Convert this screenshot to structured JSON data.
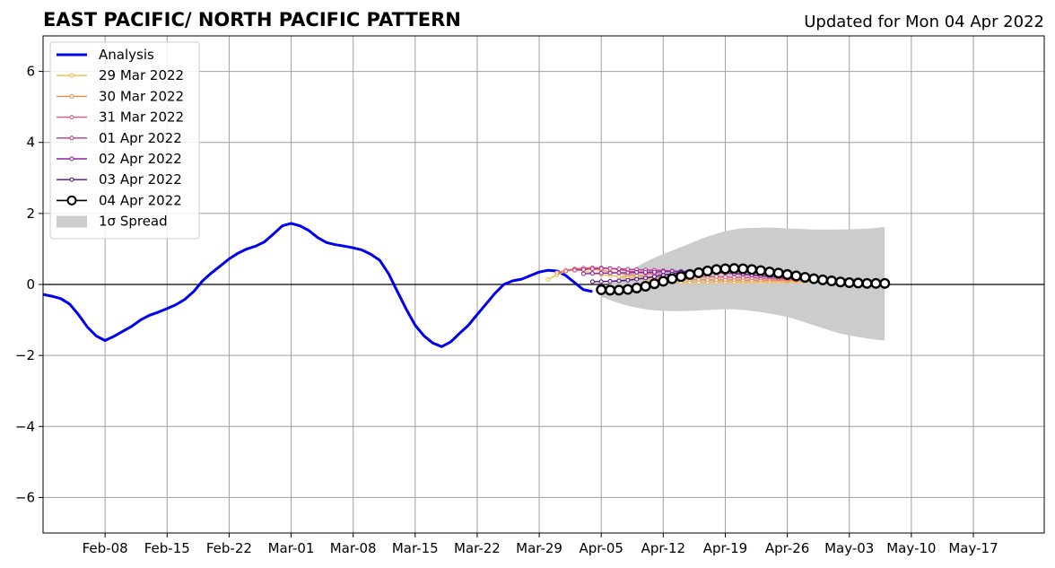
{
  "title": "EAST PACIFIC/ NORTH PACIFIC PATTERN",
  "updated": "Updated for Mon 04 Apr 2022",
  "chart_data": {
    "type": "line",
    "title": "EAST PACIFIC/ NORTH PACIFIC PATTERN",
    "subtitle": "Updated for Mon 04 Apr 2022",
    "xlabel": "",
    "ylabel": "",
    "x_start": "2022-02-01",
    "xlim": [
      "2022-02-01",
      "2022-05-25"
    ],
    "ylim": [
      -7,
      7
    ],
    "x_ticks": [
      {
        "date": "2022-02-08",
        "label": "Feb-08"
      },
      {
        "date": "2022-02-15",
        "label": "Feb-15"
      },
      {
        "date": "2022-02-22",
        "label": "Feb-22"
      },
      {
        "date": "2022-03-01",
        "label": "Mar-01"
      },
      {
        "date": "2022-03-08",
        "label": "Mar-08"
      },
      {
        "date": "2022-03-15",
        "label": "Mar-15"
      },
      {
        "date": "2022-03-22",
        "label": "Mar-22"
      },
      {
        "date": "2022-03-29",
        "label": "Mar-29"
      },
      {
        "date": "2022-04-05",
        "label": "Apr-05"
      },
      {
        "date": "2022-04-12",
        "label": "Apr-12"
      },
      {
        "date": "2022-04-19",
        "label": "Apr-19"
      },
      {
        "date": "2022-04-26",
        "label": "Apr-26"
      },
      {
        "date": "2022-05-03",
        "label": "May-03"
      },
      {
        "date": "2022-05-10",
        "label": "May-10"
      },
      {
        "date": "2022-05-17",
        "label": "May-17"
      }
    ],
    "y_ticks": [
      {
        "value": 6,
        "label": "6"
      },
      {
        "value": 4,
        "label": "4"
      },
      {
        "value": 2,
        "label": "2"
      },
      {
        "value": 0,
        "label": "0"
      },
      {
        "value": -2,
        "label": "−2"
      },
      {
        "value": -4,
        "label": "−4"
      },
      {
        "value": -6,
        "label": "−6"
      }
    ],
    "grid": true,
    "legend_position": "top-left",
    "series": [
      {
        "name": "Analysis",
        "color": "#0000ee",
        "style": "analysis",
        "x": [
          "2022-02-01",
          "2022-02-02",
          "2022-02-03",
          "2022-02-04",
          "2022-02-05",
          "2022-02-06",
          "2022-02-07",
          "2022-02-08",
          "2022-02-09",
          "2022-02-10",
          "2022-02-11",
          "2022-02-12",
          "2022-02-13",
          "2022-02-14",
          "2022-02-15",
          "2022-02-16",
          "2022-02-17",
          "2022-02-18",
          "2022-02-19",
          "2022-02-20",
          "2022-02-21",
          "2022-02-22",
          "2022-02-23",
          "2022-02-24",
          "2022-02-25",
          "2022-02-26",
          "2022-02-27",
          "2022-02-28",
          "2022-03-01",
          "2022-03-02",
          "2022-03-03",
          "2022-03-04",
          "2022-03-05",
          "2022-03-06",
          "2022-03-07",
          "2022-03-08",
          "2022-03-09",
          "2022-03-10",
          "2022-03-11",
          "2022-03-12",
          "2022-03-13",
          "2022-03-14",
          "2022-03-15",
          "2022-03-16",
          "2022-03-17",
          "2022-03-18",
          "2022-03-19",
          "2022-03-20",
          "2022-03-21",
          "2022-03-22",
          "2022-03-23",
          "2022-03-24",
          "2022-03-25",
          "2022-03-26",
          "2022-03-27",
          "2022-03-28",
          "2022-03-29",
          "2022-03-30",
          "2022-03-31",
          "2022-04-01",
          "2022-04-02",
          "2022-04-03",
          "2022-04-04"
        ],
        "values": [
          -0.28,
          -0.33,
          -0.4,
          -0.55,
          -0.85,
          -1.2,
          -1.45,
          -1.58,
          -1.46,
          -1.32,
          -1.18,
          -1.0,
          -0.87,
          -0.78,
          -0.68,
          -0.57,
          -0.42,
          -0.2,
          0.1,
          0.32,
          0.52,
          0.72,
          0.88,
          1.0,
          1.08,
          1.2,
          1.42,
          1.65,
          1.72,
          1.65,
          1.52,
          1.32,
          1.18,
          1.12,
          1.08,
          1.03,
          0.97,
          0.85,
          0.68,
          0.3,
          -0.2,
          -0.7,
          -1.15,
          -1.45,
          -1.65,
          -1.75,
          -1.62,
          -1.38,
          -1.15,
          -0.85,
          -0.55,
          -0.25,
          0.0,
          0.1,
          0.15,
          0.25,
          0.35,
          0.4,
          0.38,
          0.25,
          0.05,
          -0.15,
          -0.2
        ]
      },
      {
        "name": "29 Mar 2022",
        "color": "#f5b841",
        "style": "forecast",
        "x": [
          "2022-03-30",
          "2022-03-31",
          "2022-04-01",
          "2022-04-02",
          "2022-04-03",
          "2022-04-04",
          "2022-04-05",
          "2022-04-06",
          "2022-04-07",
          "2022-04-08",
          "2022-04-09",
          "2022-04-10",
          "2022-04-11",
          "2022-04-12",
          "2022-04-13",
          "2022-04-14",
          "2022-04-15",
          "2022-04-16",
          "2022-04-17",
          "2022-04-18",
          "2022-04-19",
          "2022-04-20",
          "2022-04-21",
          "2022-04-22",
          "2022-04-23",
          "2022-04-24",
          "2022-04-25",
          "2022-04-26",
          "2022-04-27",
          "2022-04-28",
          "2022-04-29",
          "2022-04-30",
          "2022-05-01",
          "2022-05-02"
        ],
        "values": [
          0.14,
          0.27,
          0.37,
          0.42,
          0.38,
          0.32,
          0.28,
          0.25,
          0.22,
          0.2,
          0.17,
          0.14,
          0.11,
          0.09,
          0.07,
          0.06,
          0.06,
          0.06,
          0.06,
          0.07,
          0.07,
          0.07,
          0.07,
          0.07,
          0.07,
          0.07,
          0.07,
          0.08,
          0.08,
          0.08,
          0.08,
          0.08,
          0.08,
          0.08
        ]
      },
      {
        "name": "30 Mar 2022",
        "color": "#f08a4b",
        "style": "forecast",
        "x": [
          "2022-03-31",
          "2022-04-01",
          "2022-04-02",
          "2022-04-03",
          "2022-04-04",
          "2022-04-05",
          "2022-04-06",
          "2022-04-07",
          "2022-04-08",
          "2022-04-09",
          "2022-04-10",
          "2022-04-11",
          "2022-04-12",
          "2022-04-13",
          "2022-04-14",
          "2022-04-15",
          "2022-04-16",
          "2022-04-17",
          "2022-04-18",
          "2022-04-19",
          "2022-04-20",
          "2022-04-21",
          "2022-04-22",
          "2022-04-23",
          "2022-04-24",
          "2022-04-25",
          "2022-04-26",
          "2022-04-27",
          "2022-04-28",
          "2022-04-29",
          "2022-04-30",
          "2022-05-01",
          "2022-05-02",
          "2022-05-03"
        ],
        "values": [
          0.33,
          0.4,
          0.44,
          0.45,
          0.43,
          0.4,
          0.36,
          0.32,
          0.28,
          0.25,
          0.22,
          0.19,
          0.17,
          0.16,
          0.15,
          0.14,
          0.14,
          0.13,
          0.13,
          0.13,
          0.13,
          0.12,
          0.12,
          0.12,
          0.12,
          0.12,
          0.11,
          0.11,
          0.11,
          0.11,
          0.1,
          0.1,
          0.1,
          0.1
        ]
      },
      {
        "name": "31 Mar 2022",
        "color": "#e0577a",
        "style": "forecast",
        "x": [
          "2022-04-01",
          "2022-04-02",
          "2022-04-03",
          "2022-04-04",
          "2022-04-05",
          "2022-04-06",
          "2022-04-07",
          "2022-04-08",
          "2022-04-09",
          "2022-04-10",
          "2022-04-11",
          "2022-04-12",
          "2022-04-13",
          "2022-04-14",
          "2022-04-15",
          "2022-04-16",
          "2022-04-17",
          "2022-04-18",
          "2022-04-19",
          "2022-04-20",
          "2022-04-21",
          "2022-04-22",
          "2022-04-23",
          "2022-04-24",
          "2022-04-25",
          "2022-04-26",
          "2022-04-27",
          "2022-04-28",
          "2022-04-29",
          "2022-04-30",
          "2022-05-01",
          "2022-05-02",
          "2022-05-03",
          "2022-05-04"
        ],
        "values": [
          0.38,
          0.43,
          0.46,
          0.47,
          0.47,
          0.45,
          0.42,
          0.38,
          0.35,
          0.32,
          0.3,
          0.28,
          0.26,
          0.25,
          0.24,
          0.23,
          0.22,
          0.22,
          0.21,
          0.2,
          0.2,
          0.19,
          0.18,
          0.17,
          0.16,
          0.15,
          0.14,
          0.12,
          0.11,
          0.1,
          0.09,
          0.08,
          0.07,
          0.06
        ]
      },
      {
        "name": "01 Apr 2022",
        "color": "#b5368c",
        "style": "forecast",
        "x": [
          "2022-04-02",
          "2022-04-03",
          "2022-04-04",
          "2022-04-05",
          "2022-04-06",
          "2022-04-07",
          "2022-04-08",
          "2022-04-09",
          "2022-04-10",
          "2022-04-11",
          "2022-04-12",
          "2022-04-13",
          "2022-04-14",
          "2022-04-15",
          "2022-04-16",
          "2022-04-17",
          "2022-04-18",
          "2022-04-19",
          "2022-04-20",
          "2022-04-21",
          "2022-04-22",
          "2022-04-23",
          "2022-04-24",
          "2022-04-25",
          "2022-04-26",
          "2022-04-27",
          "2022-04-28",
          "2022-04-29",
          "2022-04-30",
          "2022-05-01",
          "2022-05-02",
          "2022-05-03",
          "2022-05-04",
          "2022-05-05"
        ],
        "values": [
          0.4,
          0.42,
          0.44,
          0.45,
          0.45,
          0.44,
          0.43,
          0.42,
          0.41,
          0.4,
          0.39,
          0.38,
          0.37,
          0.36,
          0.35,
          0.34,
          0.33,
          0.32,
          0.3,
          0.28,
          0.26,
          0.24,
          0.22,
          0.2,
          0.18,
          0.16,
          0.14,
          0.12,
          0.1,
          0.09,
          0.08,
          0.07,
          0.06,
          0.05
        ]
      },
      {
        "name": "02 Apr 2022",
        "color": "#8a1fa3",
        "style": "forecast",
        "x": [
          "2022-04-03",
          "2022-04-04",
          "2022-04-05",
          "2022-04-06",
          "2022-04-07",
          "2022-04-08",
          "2022-04-09",
          "2022-04-10",
          "2022-04-11",
          "2022-04-12",
          "2022-04-13",
          "2022-04-14",
          "2022-04-15",
          "2022-04-16",
          "2022-04-17",
          "2022-04-18",
          "2022-04-19",
          "2022-04-20",
          "2022-04-21",
          "2022-04-22",
          "2022-04-23",
          "2022-04-24",
          "2022-04-25",
          "2022-04-26",
          "2022-04-27",
          "2022-04-28",
          "2022-04-29",
          "2022-04-30",
          "2022-05-01",
          "2022-05-02",
          "2022-05-03",
          "2022-05-04",
          "2022-05-05",
          "2022-05-06"
        ],
        "values": [
          0.3,
          0.31,
          0.32,
          0.32,
          0.33,
          0.33,
          0.34,
          0.34,
          0.35,
          0.36,
          0.37,
          0.37,
          0.37,
          0.36,
          0.35,
          0.34,
          0.33,
          0.31,
          0.29,
          0.27,
          0.25,
          0.23,
          0.2,
          0.18,
          0.15,
          0.13,
          0.11,
          0.09,
          0.08,
          0.07,
          0.06,
          0.05,
          0.04,
          0.03
        ]
      },
      {
        "name": "03 Apr 2022",
        "color": "#4b0f8f",
        "style": "forecast",
        "x": [
          "2022-04-04",
          "2022-04-05",
          "2022-04-06",
          "2022-04-07",
          "2022-04-08",
          "2022-04-09",
          "2022-04-10",
          "2022-04-11",
          "2022-04-12",
          "2022-04-13",
          "2022-04-14",
          "2022-04-15",
          "2022-04-16",
          "2022-04-17",
          "2022-04-18",
          "2022-04-19",
          "2022-04-20",
          "2022-04-21",
          "2022-04-22",
          "2022-04-23",
          "2022-04-24",
          "2022-04-25",
          "2022-04-26",
          "2022-04-27",
          "2022-04-28",
          "2022-04-29",
          "2022-04-30",
          "2022-05-01",
          "2022-05-02",
          "2022-05-03",
          "2022-05-04",
          "2022-05-05",
          "2022-05-06",
          "2022-05-07"
        ],
        "values": [
          0.08,
          0.08,
          0.09,
          0.1,
          0.12,
          0.15,
          0.18,
          0.22,
          0.26,
          0.3,
          0.34,
          0.37,
          0.4,
          0.41,
          0.42,
          0.42,
          0.41,
          0.39,
          0.37,
          0.34,
          0.31,
          0.27,
          0.23,
          0.2,
          0.16,
          0.13,
          0.1,
          0.08,
          0.06,
          0.05,
          0.04,
          0.03,
          0.03,
          0.02
        ]
      },
      {
        "name": "04 Apr 2022",
        "color": "#000000",
        "style": "current",
        "x": [
          "2022-04-05",
          "2022-04-06",
          "2022-04-07",
          "2022-04-08",
          "2022-04-09",
          "2022-04-10",
          "2022-04-11",
          "2022-04-12",
          "2022-04-13",
          "2022-04-14",
          "2022-04-15",
          "2022-04-16",
          "2022-04-17",
          "2022-04-18",
          "2022-04-19",
          "2022-04-20",
          "2022-04-21",
          "2022-04-22",
          "2022-04-23",
          "2022-04-24",
          "2022-04-25",
          "2022-04-26",
          "2022-04-27",
          "2022-04-28",
          "2022-04-29",
          "2022-04-30",
          "2022-05-01",
          "2022-05-02",
          "2022-05-03",
          "2022-05-04",
          "2022-05-05",
          "2022-05-06",
          "2022-05-07"
        ],
        "values": [
          -0.15,
          -0.16,
          -0.16,
          -0.14,
          -0.1,
          -0.05,
          0.02,
          0.09,
          0.16,
          0.22,
          0.28,
          0.33,
          0.38,
          0.42,
          0.44,
          0.45,
          0.44,
          0.42,
          0.39,
          0.35,
          0.32,
          0.28,
          0.24,
          0.2,
          0.16,
          0.13,
          0.1,
          0.07,
          0.05,
          0.04,
          0.03,
          0.03,
          0.03
        ]
      }
    ],
    "spread": {
      "name": "1σ Spread",
      "color": "#cccccc",
      "x": [
        "2022-04-05",
        "2022-04-08",
        "2022-04-11",
        "2022-04-14",
        "2022-04-17",
        "2022-04-20",
        "2022-04-23",
        "2022-04-26",
        "2022-04-29",
        "2022-05-02",
        "2022-05-05",
        "2022-05-07"
      ],
      "upper": [
        -0.15,
        0.35,
        0.75,
        1.05,
        1.35,
        1.55,
        1.6,
        1.58,
        1.55,
        1.55,
        1.57,
        1.62
      ],
      "lower": [
        -0.35,
        -0.6,
        -0.73,
        -0.75,
        -0.72,
        -0.7,
        -0.78,
        -0.92,
        -1.15,
        -1.38,
        -1.52,
        -1.58
      ]
    }
  }
}
